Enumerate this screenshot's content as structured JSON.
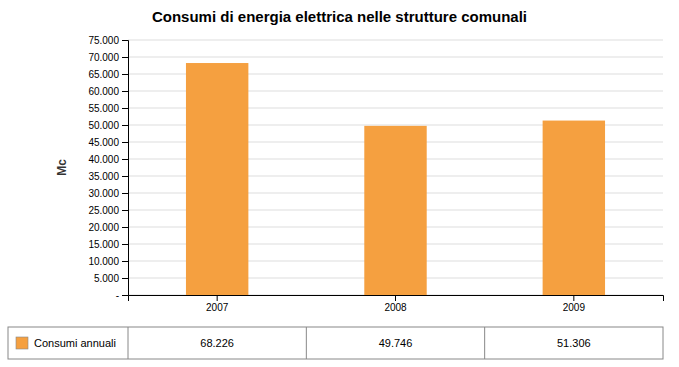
{
  "chart_data": {
    "type": "bar",
    "title": "Consumi di energia elettrica nelle strutture comunali",
    "y_label": "Mc",
    "categories": [
      "2007",
      "2008",
      "2009"
    ],
    "series": [
      {
        "name": "Consumi annuali",
        "color": "#F5A040",
        "values": [
          68226,
          49746,
          51306
        ],
        "value_labels": [
          "68.226",
          "49.746",
          "51.306"
        ]
      }
    ],
    "ylim": [
      0,
      75000
    ],
    "yticks": [
      {
        "value": 0,
        "label": "-"
      },
      {
        "value": 5000,
        "label": "5.000"
      },
      {
        "value": 10000,
        "label": "10.000"
      },
      {
        "value": 15000,
        "label": "15.000"
      },
      {
        "value": 20000,
        "label": "20.000"
      },
      {
        "value": 25000,
        "label": "25.000"
      },
      {
        "value": 30000,
        "label": "30.000"
      },
      {
        "value": 35000,
        "label": "35.000"
      },
      {
        "value": 40000,
        "label": "40.000"
      },
      {
        "value": 45000,
        "label": "45.000"
      },
      {
        "value": 50000,
        "label": "50.000"
      },
      {
        "value": 55000,
        "label": "55.000"
      },
      {
        "value": 60000,
        "label": "60.000"
      },
      {
        "value": 65000,
        "label": "65.000"
      },
      {
        "value": 70000,
        "label": "70.000"
      },
      {
        "value": 75000,
        "label": "75.000"
      }
    ],
    "grid": true,
    "legend": "bottom"
  }
}
